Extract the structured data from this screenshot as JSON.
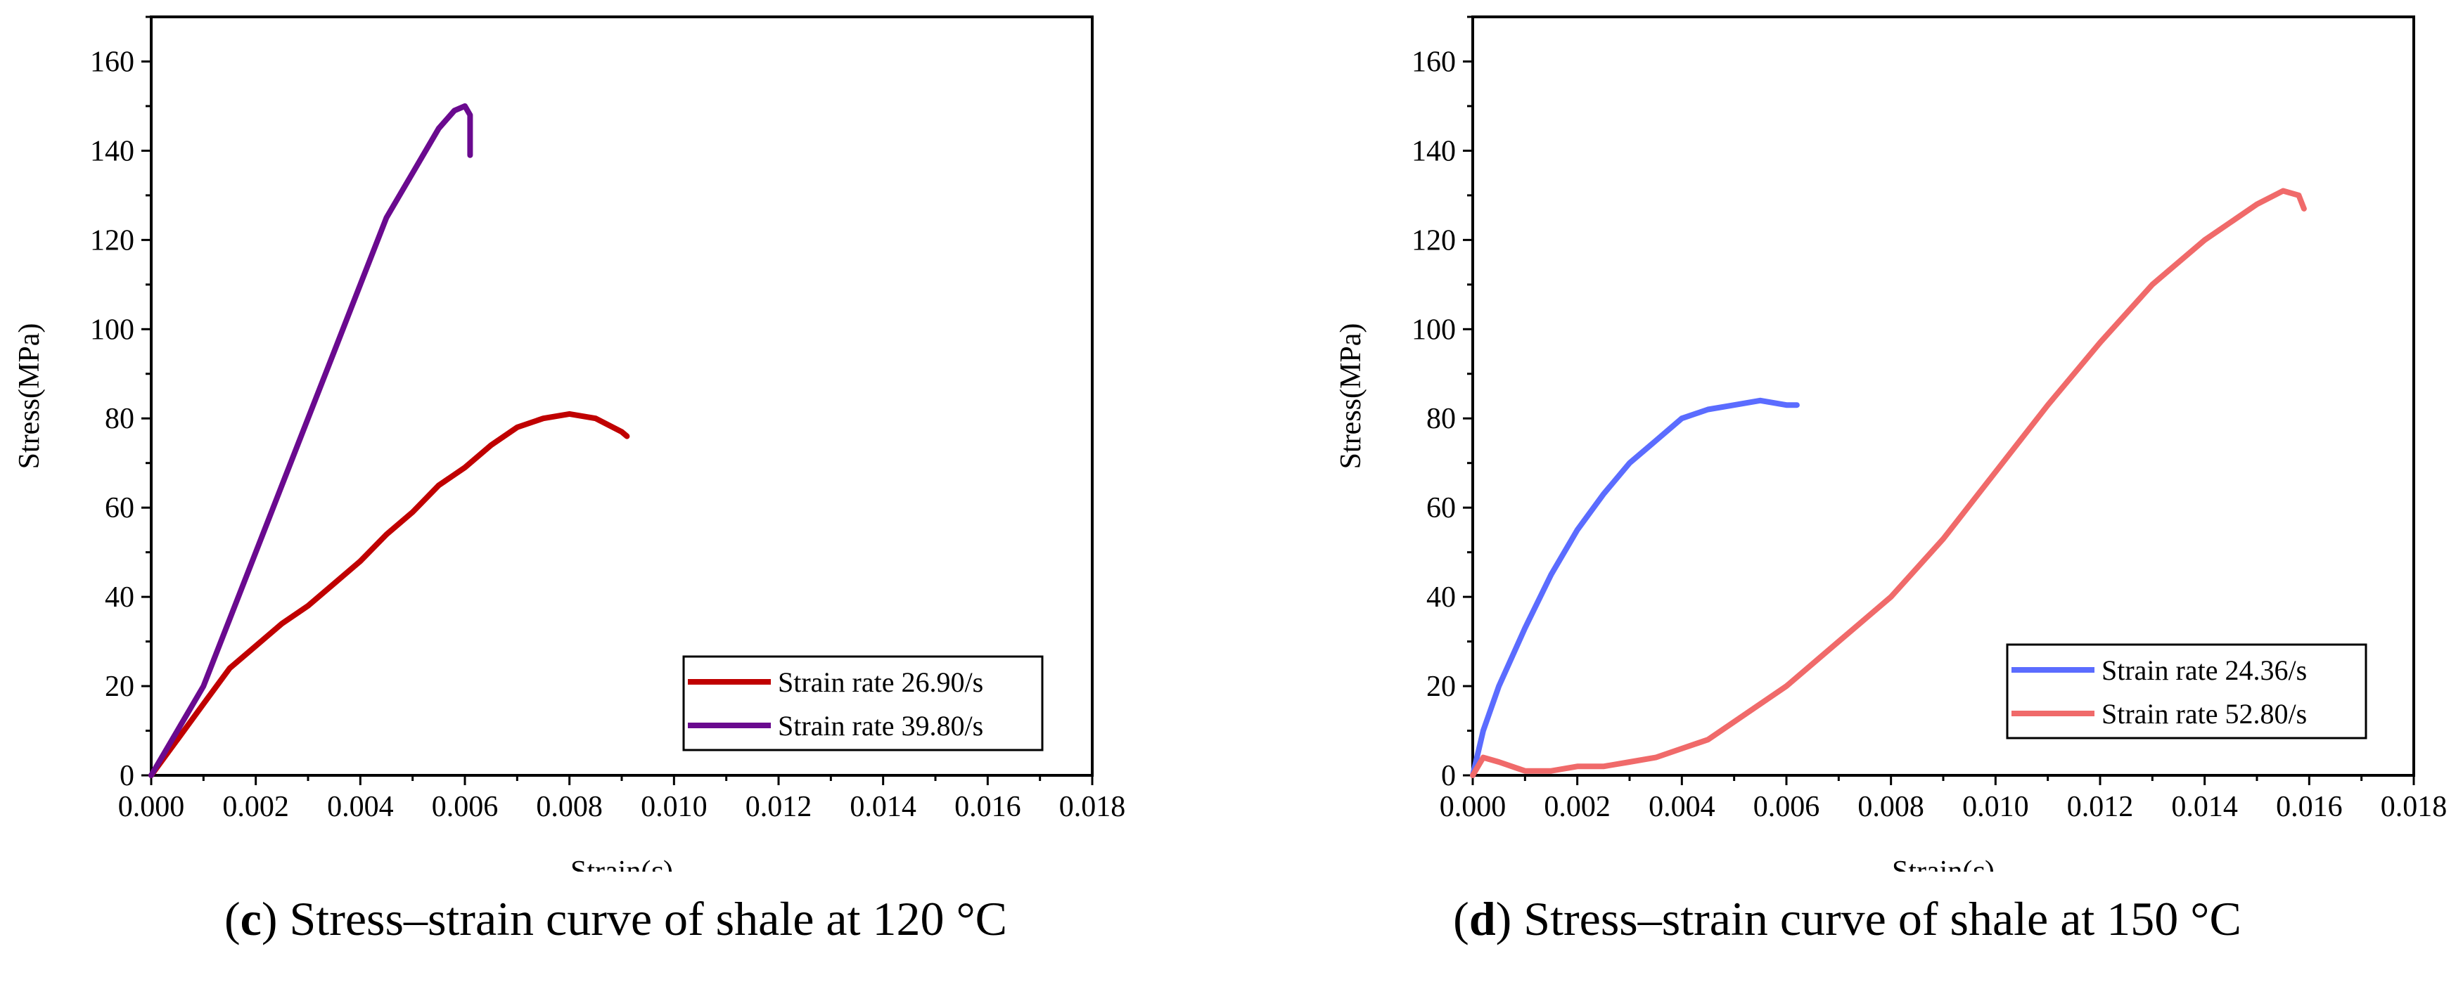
{
  "chart_data": [
    {
      "type": "line",
      "panel_letter": "c",
      "caption": "Stress–strain curve of shale at 120 °C",
      "xlabel": "Strain(ε)",
      "ylabel": "Stress(MPa)",
      "xlim": [
        0,
        0.018
      ],
      "ylim": [
        0,
        170
      ],
      "xticks": [
        "0.000",
        "0.002",
        "0.004",
        "0.006",
        "0.008",
        "0.010",
        "0.012",
        "0.014",
        "0.016",
        "0.018"
      ],
      "yticks": [
        "0",
        "20",
        "40",
        "60",
        "80",
        "100",
        "120",
        "140",
        "160"
      ],
      "legend_position": "bottom-right",
      "series": [
        {
          "name": "Strain rate 26.90/s",
          "color": "#c00000",
          "x": [
            0,
            0.0005,
            0.001,
            0.0015,
            0.002,
            0.0025,
            0.003,
            0.0035,
            0.004,
            0.0045,
            0.005,
            0.0055,
            0.006,
            0.0065,
            0.007,
            0.0075,
            0.008,
            0.0085,
            0.009,
            0.0091
          ],
          "y": [
            0,
            8,
            16,
            24,
            29,
            34,
            38,
            43,
            48,
            54,
            59,
            65,
            69,
            74,
            78,
            80,
            81,
            80,
            77,
            76
          ]
        },
        {
          "name": "Strain rate 39.80/s",
          "color": "#6a0a8f",
          "x": [
            0,
            0.0005,
            0.001,
            0.0015,
            0.002,
            0.0025,
            0.003,
            0.0035,
            0.004,
            0.0045,
            0.005,
            0.0055,
            0.0058,
            0.006,
            0.0061,
            0.0061
          ],
          "y": [
            0,
            10,
            20,
            35,
            50,
            65,
            80,
            95,
            110,
            125,
            135,
            145,
            149,
            150,
            148,
            139
          ]
        }
      ]
    },
    {
      "type": "line",
      "panel_letter": "d",
      "caption": "Stress–strain curve of shale at 150 °C",
      "xlabel": "Strain(ε)",
      "ylabel": "Stress(MPa)",
      "xlim": [
        0,
        0.018
      ],
      "ylim": [
        0,
        170
      ],
      "xticks": [
        "0.000",
        "0.002",
        "0.004",
        "0.006",
        "0.008",
        "0.010",
        "0.012",
        "0.014",
        "0.016",
        "0.018"
      ],
      "yticks": [
        "0",
        "20",
        "40",
        "60",
        "80",
        "100",
        "120",
        "140",
        "160"
      ],
      "legend_position": "bottom-right",
      "series": [
        {
          "name": "Strain rate 24.36/s",
          "color": "#5b6cff",
          "x": [
            0,
            0.0002,
            0.0005,
            0.001,
            0.0015,
            0.002,
            0.0025,
            0.003,
            0.0035,
            0.004,
            0.0045,
            0.005,
            0.0055,
            0.006,
            0.0062
          ],
          "y": [
            0,
            10,
            20,
            33,
            45,
            55,
            63,
            70,
            75,
            80,
            82,
            83,
            84,
            83,
            83
          ]
        },
        {
          "name": "Strain rate 52.80/s",
          "color": "#f06a6a",
          "x": [
            0,
            0.0002,
            0.0005,
            0.001,
            0.0015,
            0.002,
            0.0025,
            0.003,
            0.0035,
            0.004,
            0.0045,
            0.005,
            0.006,
            0.007,
            0.008,
            0.009,
            0.01,
            0.011,
            0.012,
            0.013,
            0.014,
            0.015,
            0.0155,
            0.0158,
            0.0159
          ],
          "y": [
            0,
            4,
            3,
            1,
            1,
            2,
            2,
            3,
            4,
            6,
            8,
            12,
            20,
            30,
            40,
            53,
            68,
            83,
            97,
            110,
            120,
            128,
            131,
            130,
            127
          ]
        }
      ]
    }
  ]
}
